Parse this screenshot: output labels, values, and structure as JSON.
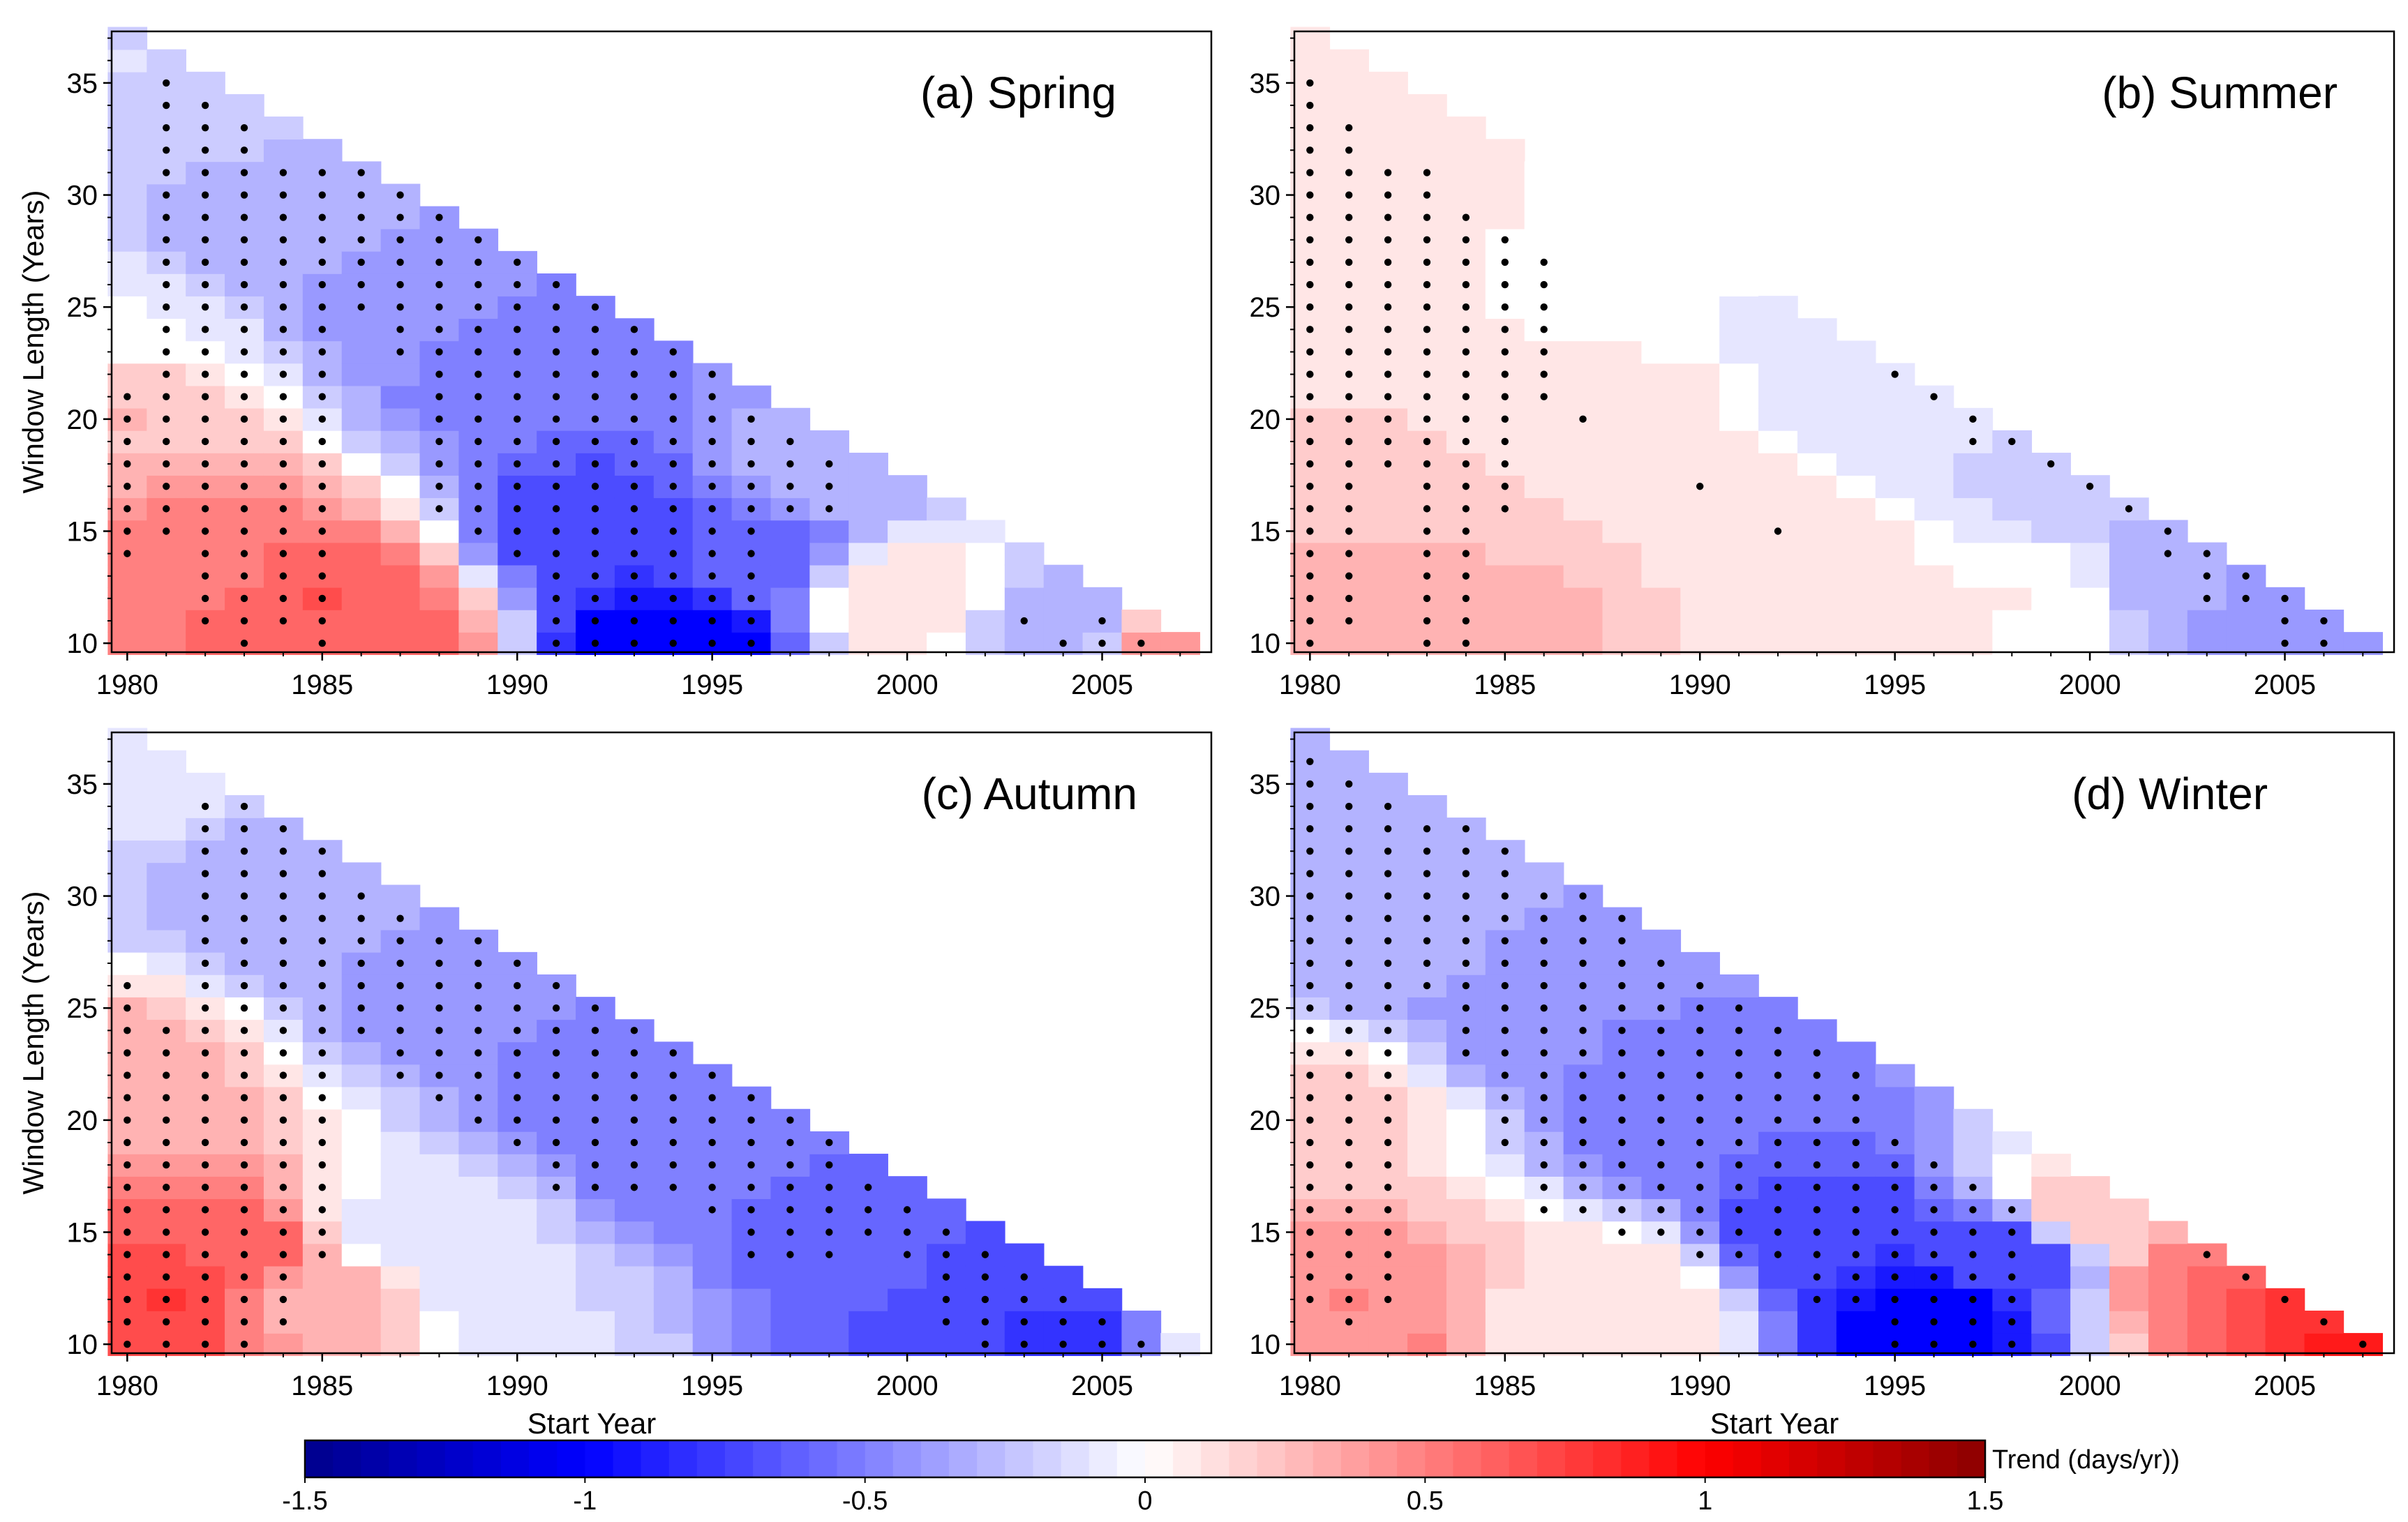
{
  "figure": {
    "xlabel": "Start Year",
    "ylabel": "Window Length (Years)",
    "xticks": [
      "1980",
      "1985",
      "1990",
      "1995",
      "2000",
      "2005"
    ],
    "yticks": [
      "35",
      "30",
      "25",
      "20",
      "15",
      "10"
    ]
  },
  "colorbar": {
    "title": "Trend (days/yr))",
    "tick_labels": [
      "-1.5",
      "-1",
      "-0.5",
      "0",
      "0.5",
      "1",
      "1.5"
    ],
    "tick_values": [
      -1.5,
      -1,
      -0.5,
      0,
      0.5,
      1,
      1.5
    ],
    "range": [
      -1.5,
      1.5
    ],
    "colors": {
      "min": "#00008b",
      "mid_blue": "#0000ff",
      "zero": "#ffffff",
      "mid_red": "#ff0000",
      "max": "#8b0000"
    }
  },
  "chart_data": [
    {
      "type": "heatmap",
      "title": "(a) Spring",
      "xlabel": "",
      "ylabel": "Window Length (Years)",
      "xlim": [
        1980,
        2007
      ],
      "ylim": [
        10,
        37
      ],
      "cell_rule": "start_year + window_length <= 2017",
      "anchors": [
        [
          1980,
          36,
          -0.15
        ],
        [
          1980,
          25,
          -0.05
        ],
        [
          1980,
          20,
          0.25
        ],
        [
          1982,
          14,
          0.5
        ],
        [
          1985,
          12,
          0.65
        ],
        [
          1986,
          10,
          0.6
        ],
        [
          1983,
          28,
          -0.3
        ],
        [
          1987,
          25,
          -0.4
        ],
        [
          1990,
          22,
          -0.55
        ],
        [
          1992,
          15,
          -0.75
        ],
        [
          1994,
          10,
          -1.05
        ],
        [
          1996,
          14,
          -0.6
        ],
        [
          1998,
          18,
          -0.3
        ],
        [
          2000,
          12,
          0.15
        ],
        [
          2004,
          11,
          -0.35
        ],
        [
          2007,
          10,
          0.4
        ]
      ],
      "significant": [
        [
          1980,
          14,
          21
        ],
        [
          1981,
          15,
          35
        ],
        [
          1982,
          11,
          34
        ],
        [
          1983,
          10,
          33
        ],
        [
          1984,
          11,
          31
        ],
        [
          1985,
          10,
          31
        ],
        [
          1986,
          25,
          31
        ],
        [
          1987,
          23,
          30
        ],
        [
          1988,
          16,
          29
        ],
        [
          1989,
          15,
          28
        ],
        [
          1990,
          14,
          27
        ],
        [
          1991,
          10,
          26
        ],
        [
          1992,
          10,
          25
        ],
        [
          1993,
          10,
          24
        ],
        [
          1994,
          10,
          23
        ],
        [
          1995,
          10,
          22
        ],
        [
          1996,
          10,
          20
        ],
        [
          1997,
          16,
          19
        ],
        [
          1998,
          16,
          18
        ],
        [
          2003,
          11,
          11
        ],
        [
          2004,
          10,
          10
        ],
        [
          2005,
          10,
          11
        ],
        [
          2006,
          10,
          10
        ]
      ]
    },
    {
      "type": "heatmap",
      "title": "(b) Summer",
      "xlabel": "",
      "ylabel": "",
      "xlim": [
        1980,
        2007
      ],
      "ylim": [
        10,
        37
      ],
      "cell_rule": "start_year + window_length <= 2017",
      "anchors": [
        [
          1980,
          30,
          0.15
        ],
        [
          1983,
          14,
          0.25
        ],
        [
          1984,
          10,
          0.3
        ],
        [
          1988,
          20,
          0.1
        ],
        [
          1992,
          15,
          0.12
        ],
        [
          1995,
          11,
          0.1
        ],
        [
          1998,
          12,
          0.05
        ],
        [
          1994,
          22,
          -0.1
        ],
        [
          1990,
          27,
          -0.05
        ],
        [
          1997,
          19,
          -0.15
        ],
        [
          2000,
          17,
          -0.25
        ],
        [
          2003,
          13,
          -0.35
        ],
        [
          2006,
          10,
          -0.45
        ]
      ],
      "significant": [
        [
          1980,
          10,
          35
        ],
        [
          1981,
          11,
          33
        ],
        [
          1982,
          18,
          31
        ],
        [
          1983,
          10,
          31
        ],
        [
          1984,
          10,
          29
        ],
        [
          1985,
          16,
          28
        ],
        [
          1986,
          21,
          27
        ],
        [
          1987,
          20,
          20
        ],
        [
          1990,
          17,
          17
        ],
        [
          1992,
          15,
          15
        ],
        [
          1995,
          22,
          22
        ],
        [
          1996,
          21,
          21
        ],
        [
          1997,
          19,
          20
        ],
        [
          1998,
          19,
          19
        ],
        [
          1999,
          18,
          18
        ],
        [
          2000,
          17,
          17
        ],
        [
          2001,
          16,
          16
        ],
        [
          2002,
          14,
          15
        ],
        [
          2003,
          12,
          14
        ],
        [
          2004,
          12,
          13
        ],
        [
          2005,
          10,
          12
        ],
        [
          2006,
          10,
          11
        ]
      ]
    },
    {
      "type": "heatmap",
      "title": "(c) Autumn",
      "xlabel": "Start Year",
      "ylabel": "Window Length (Years)",
      "xlim": [
        1980,
        2007
      ],
      "ylim": [
        10,
        37
      ],
      "cell_rule": "start_year + window_length <= 2017",
      "anchors": [
        [
          1980,
          36,
          -0.1
        ],
        [
          1980,
          22,
          0.3
        ],
        [
          1981,
          12,
          0.75
        ],
        [
          1983,
          14,
          0.6
        ],
        [
          1985,
          12,
          0.3
        ],
        [
          1987,
          15,
          -0.1
        ],
        [
          1984,
          30,
          -0.3
        ],
        [
          1988,
          26,
          -0.4
        ],
        [
          1992,
          22,
          -0.5
        ],
        [
          1995,
          18,
          -0.55
        ],
        [
          1999,
          14,
          -0.6
        ],
        [
          2002,
          12,
          -0.75
        ],
        [
          2005,
          10,
          -0.85
        ],
        [
          2007,
          10,
          -0.1
        ],
        [
          1990,
          12,
          -0.15
        ]
      ],
      "significant": [
        [
          1980,
          10,
          26
        ],
        [
          1981,
          10,
          24
        ],
        [
          1982,
          10,
          34
        ],
        [
          1983,
          10,
          34
        ],
        [
          1984,
          11,
          33
        ],
        [
          1985,
          14,
          32
        ],
        [
          1986,
          24,
          30
        ],
        [
          1987,
          22,
          29
        ],
        [
          1988,
          21,
          28
        ],
        [
          1989,
          20,
          28
        ],
        [
          1990,
          19,
          27
        ],
        [
          1991,
          17,
          26
        ],
        [
          1992,
          17,
          25
        ],
        [
          1993,
          17,
          24
        ],
        [
          1994,
          17,
          23
        ],
        [
          1995,
          16,
          22
        ],
        [
          1996,
          14,
          21
        ],
        [
          1997,
          14,
          20
        ],
        [
          1998,
          14,
          19
        ],
        [
          1999,
          15,
          17
        ],
        [
          2000,
          14,
          16
        ],
        [
          2001,
          11,
          15
        ],
        [
          2002,
          10,
          14
        ],
        [
          2003,
          10,
          13
        ],
        [
          2004,
          10,
          12
        ],
        [
          2005,
          10,
          11
        ],
        [
          2006,
          10,
          10
        ]
      ]
    },
    {
      "type": "heatmap",
      "title": "(d) Winter",
      "xlabel": "Start Year",
      "ylabel": "",
      "xlim": [
        1980,
        2007
      ],
      "ylim": [
        10,
        37
      ],
      "cell_rule": "start_year + window_length <= 2017",
      "anchors": [
        [
          1980,
          36,
          -0.3
        ],
        [
          1980,
          20,
          0.2
        ],
        [
          1981,
          12,
          0.45
        ],
        [
          1983,
          10,
          0.45
        ],
        [
          1985,
          10,
          0.05
        ],
        [
          1982,
          28,
          -0.3
        ],
        [
          1986,
          25,
          -0.45
        ],
        [
          1990,
          20,
          -0.55
        ],
        [
          1993,
          15,
          -0.75
        ],
        [
          1996,
          11,
          -1.05
        ],
        [
          1998,
          14,
          -0.7
        ],
        [
          2000,
          16,
          0.2
        ],
        [
          2003,
          13,
          0.55
        ],
        [
          2005,
          12,
          0.75
        ],
        [
          2007,
          10,
          0.9
        ],
        [
          1988,
          12,
          0.15
        ]
      ],
      "significant": [
        [
          1980,
          12,
          36
        ],
        [
          1981,
          11,
          35
        ],
        [
          1982,
          12,
          34
        ],
        [
          1983,
          26,
          33
        ],
        [
          1984,
          23,
          33
        ],
        [
          1985,
          19,
          32
        ],
        [
          1986,
          16,
          30
        ],
        [
          1987,
          16,
          30
        ],
        [
          1988,
          15,
          29
        ],
        [
          1989,
          15,
          27
        ],
        [
          1990,
          14,
          26
        ],
        [
          1991,
          14,
          25
        ],
        [
          1992,
          14,
          24
        ],
        [
          1993,
          12,
          23
        ],
        [
          1994,
          12,
          22
        ],
        [
          1995,
          10,
          19
        ],
        [
          1996,
          10,
          18
        ],
        [
          1997,
          10,
          17
        ],
        [
          1998,
          10,
          16
        ],
        [
          2003,
          14,
          14
        ],
        [
          2004,
          13,
          13
        ],
        [
          2005,
          12,
          12
        ],
        [
          2006,
          11,
          11
        ],
        [
          2007,
          10,
          10
        ]
      ]
    }
  ]
}
